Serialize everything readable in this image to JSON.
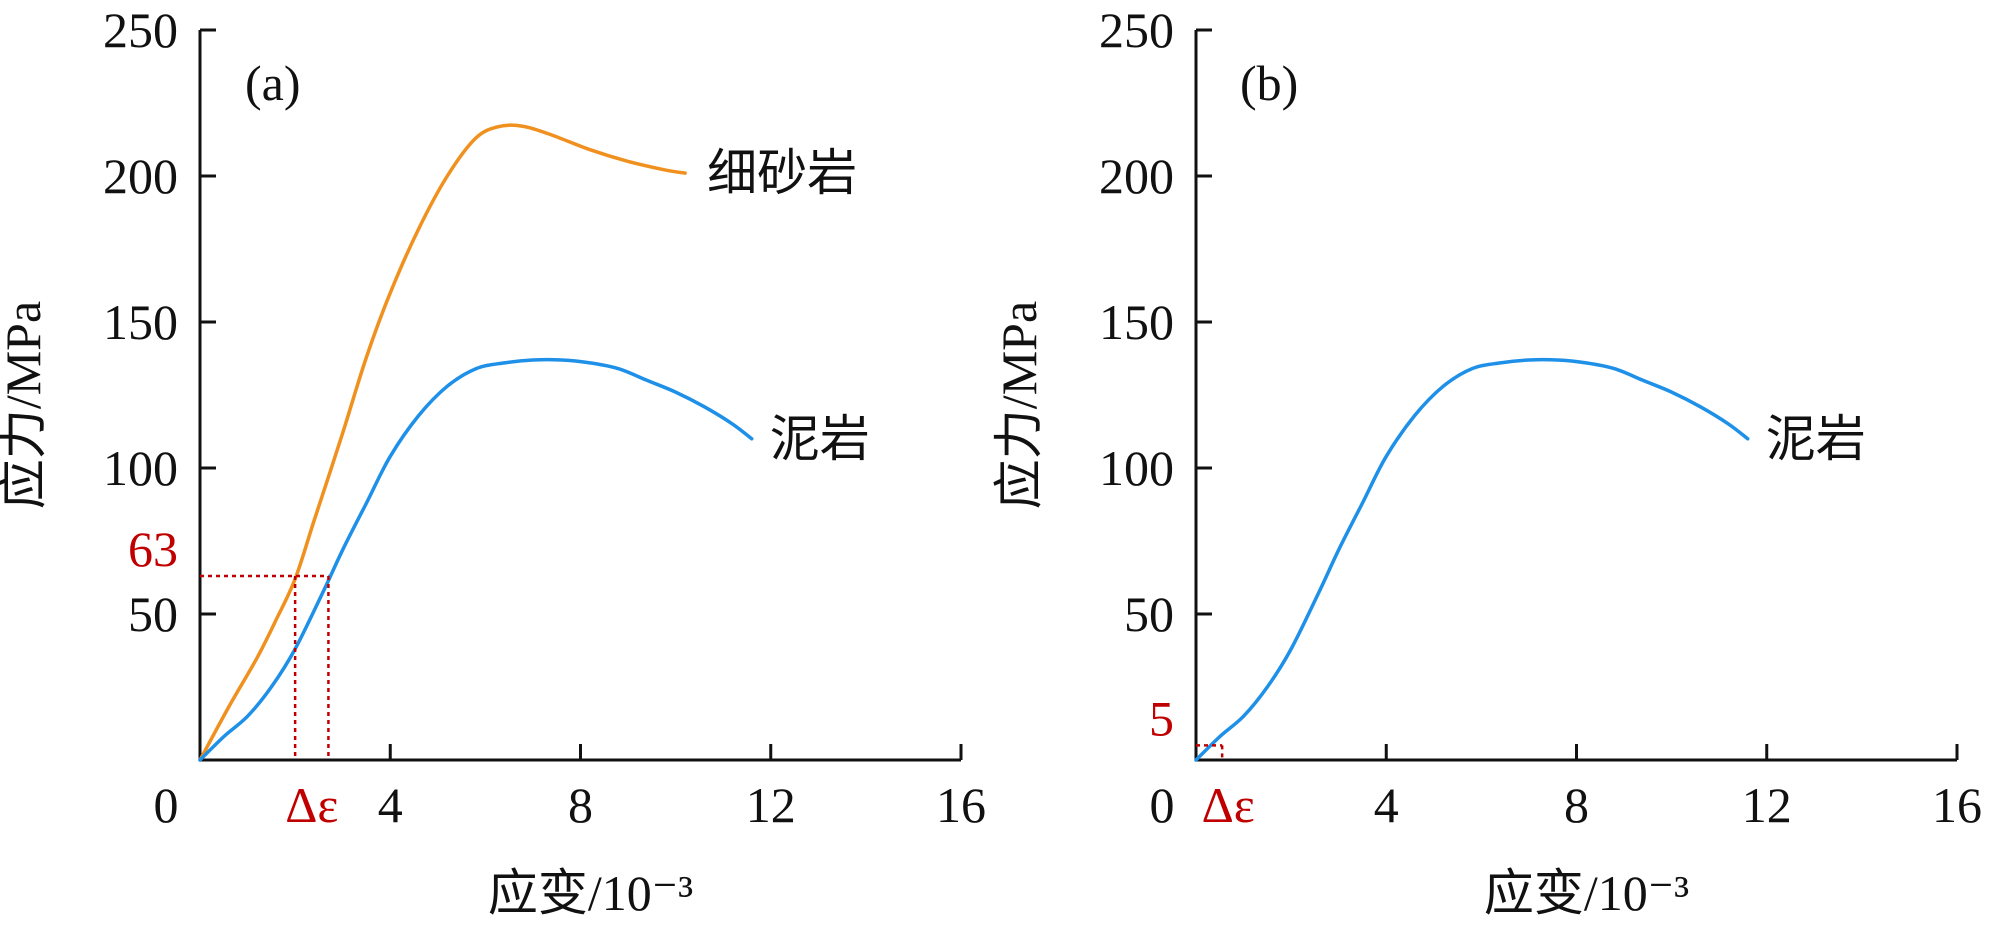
{
  "chart_data": [
    {
      "type": "line",
      "panel_label": "(a)",
      "xlabel": "应变/10⁻³",
      "ylabel": "应力/MPa",
      "xlim": [
        0,
        16
      ],
      "ylim": [
        0,
        250
      ],
      "x_ticks": [
        0,
        4,
        8,
        12,
        16
      ],
      "y_ticks": [
        50,
        100,
        150,
        200,
        250
      ],
      "grid": false,
      "series": [
        {
          "name": "细砂岩",
          "color": "#F0901E",
          "x": [
            0,
            0.6,
            1.2,
            1.6,
            2.0,
            2.4,
            3.0,
            3.5,
            4.0,
            4.6,
            5.2,
            5.8,
            6.3,
            6.8,
            7.4,
            8.2,
            9.0,
            9.8,
            10.2
          ],
          "y": [
            0,
            18,
            35,
            48,
            62,
            82,
            112,
            138,
            160,
            182,
            200,
            213,
            217,
            217,
            214,
            209,
            205,
            202,
            201
          ]
        },
        {
          "name": "泥岩",
          "color": "#1E90E8",
          "x": [
            0,
            0.5,
            1.0,
            1.5,
            2.0,
            2.6,
            3.0,
            3.5,
            4.0,
            4.6,
            5.2,
            5.8,
            6.4,
            7.0,
            7.6,
            8.2,
            8.8,
            9.4,
            10.0,
            10.6,
            11.2,
            11.6
          ],
          "y": [
            0,
            8,
            15,
            25,
            38,
            58,
            72,
            88,
            104,
            118,
            128,
            134,
            136,
            137,
            137,
            136,
            134,
            130,
            126,
            121,
            115,
            110
          ]
        }
      ],
      "annotations": {
        "y_marker_label": "63",
        "y_marker_value": 63,
        "x_marker_label": "Δε",
        "x_marker_values": [
          2.0,
          2.7
        ],
        "color": "#C00000"
      }
    },
    {
      "type": "line",
      "panel_label": "(b)",
      "xlabel": "应变/10⁻³",
      "ylabel": "应力/MPa",
      "xlim": [
        0,
        16
      ],
      "ylim": [
        0,
        250
      ],
      "x_ticks": [
        0,
        4,
        8,
        12,
        16
      ],
      "y_ticks": [
        50,
        100,
        150,
        200,
        250
      ],
      "grid": false,
      "series": [
        {
          "name": "泥岩",
          "color": "#1E90E8",
          "x": [
            0,
            0.5,
            1.0,
            1.5,
            2.0,
            2.6,
            3.0,
            3.5,
            4.0,
            4.6,
            5.2,
            5.8,
            6.4,
            7.0,
            7.6,
            8.2,
            8.8,
            9.4,
            10.0,
            10.6,
            11.2,
            11.6
          ],
          "y": [
            0,
            8,
            15,
            25,
            38,
            58,
            72,
            88,
            104,
            118,
            128,
            134,
            136,
            137,
            137,
            136,
            134,
            130,
            126,
            121,
            115,
            110
          ]
        }
      ],
      "annotations": {
        "y_marker_label": "5",
        "y_marker_value": 5,
        "x_marker_label": "Δε",
        "x_marker_values": [
          0.55
        ],
        "color": "#C00000"
      }
    }
  ]
}
